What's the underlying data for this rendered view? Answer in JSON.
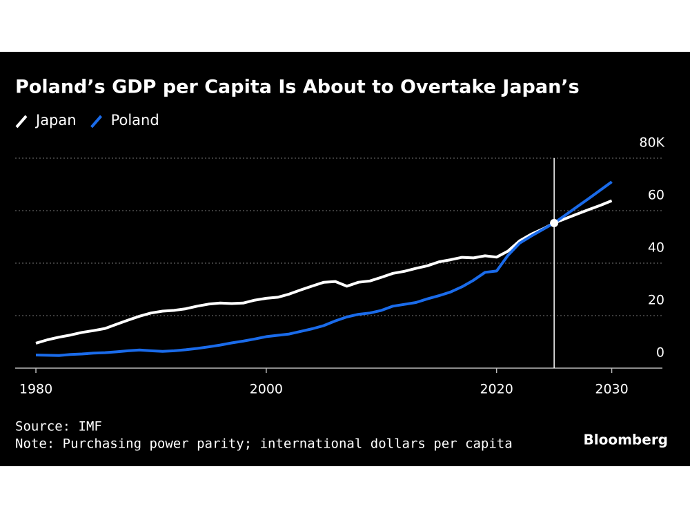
{
  "chart_data": {
    "type": "line",
    "title": "Poland’s GDP per Capita Is About to Overtake Japan’s",
    "source": "Source: IMF",
    "note": "Note: Purchasing power parity; international dollars per capita",
    "brand": "Bloomberg",
    "x": [
      1980,
      1981,
      1982,
      1983,
      1984,
      1985,
      1986,
      1987,
      1988,
      1989,
      1990,
      1991,
      1992,
      1993,
      1994,
      1995,
      1996,
      1997,
      1998,
      1999,
      2000,
      2001,
      2002,
      2003,
      2004,
      2005,
      2006,
      2007,
      2008,
      2009,
      2010,
      2011,
      2012,
      2013,
      2014,
      2015,
      2016,
      2017,
      2018,
      2019,
      2020,
      2021,
      2022,
      2023,
      2024,
      2025,
      2026,
      2027,
      2028,
      2029,
      2030
    ],
    "series": [
      {
        "name": "Japan",
        "color": "#ffffff",
        "values": [
          9.5,
          10.8,
          11.8,
          12.6,
          13.6,
          14.3,
          15.1,
          16.7,
          18.3,
          19.8,
          21,
          21.7,
          22,
          22.6,
          23.6,
          24.4,
          24.8,
          24.6,
          24.8,
          25.9,
          26.6,
          27,
          28.2,
          29.8,
          31.3,
          32.7,
          33,
          31.2,
          32.7,
          33.2,
          34.6,
          36.1,
          36.9,
          38,
          39,
          40.5,
          41.3,
          42.2,
          42,
          42.8,
          42.3,
          44.6,
          48.5,
          51,
          53,
          55.3,
          57,
          58.7,
          60.4,
          62,
          63.8
        ]
      },
      {
        "name": "Poland",
        "color": "#1a6bea",
        "values": [
          5,
          4.9,
          4.8,
          5.2,
          5.4,
          5.7,
          5.9,
          6.2,
          6.6,
          6.9,
          6.6,
          6.4,
          6.6,
          7,
          7.5,
          8.1,
          8.8,
          9.6,
          10.3,
          11.1,
          12,
          12.5,
          13,
          14,
          15,
          16.2,
          18,
          19.5,
          20.5,
          21,
          22,
          23.6,
          24.3,
          25,
          26.4,
          27.6,
          29,
          31,
          33.5,
          36.5,
          37,
          43,
          47.6,
          50.3,
          52.8,
          55.3,
          58.4,
          61.5,
          64.6,
          67.8,
          71
        ]
      }
    ],
    "highlight_x": 2025,
    "xlim": [
      1978.2,
      2034.4
    ],
    "xticks": [
      1980,
      2000,
      2020,
      2030
    ],
    "ylim": [
      0,
      80
    ],
    "yticks": [
      0,
      20,
      40,
      60,
      {
        "value": 80,
        "label": "80K"
      }
    ],
    "grid": true
  }
}
